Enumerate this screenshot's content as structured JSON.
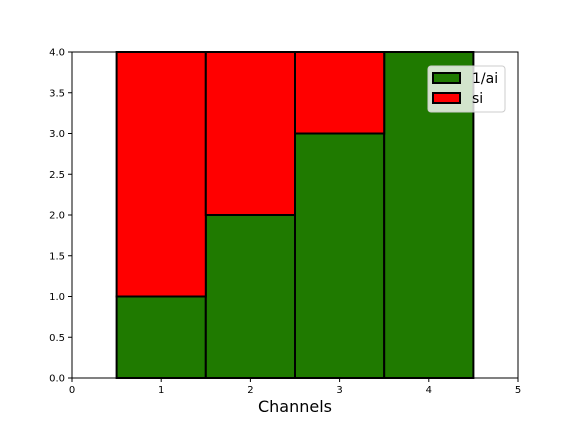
{
  "chart_data": {
    "type": "bar",
    "stacked": true,
    "title": "",
    "xlabel": "Channels",
    "ylabel": "",
    "xlim": [
      0,
      5
    ],
    "ylim": [
      0,
      4
    ],
    "xticks": [
      "0",
      "1",
      "2",
      "3",
      "4",
      "5"
    ],
    "yticks": [
      "0.0",
      "0.5",
      "1.0",
      "1.5",
      "2.0",
      "2.5",
      "3.0",
      "3.5",
      "4.0"
    ],
    "x": [
      1,
      2,
      3,
      4
    ],
    "bar_width": 1,
    "series": [
      {
        "name": "1/ai",
        "color": "#1f7a00",
        "values": [
          1,
          2,
          3,
          4
        ]
      },
      {
        "name": "si",
        "color": "#ff0000",
        "values": [
          3,
          2,
          1,
          0
        ]
      }
    ],
    "grid": false,
    "legend_position": "upper right",
    "edge_color": "#000000"
  }
}
